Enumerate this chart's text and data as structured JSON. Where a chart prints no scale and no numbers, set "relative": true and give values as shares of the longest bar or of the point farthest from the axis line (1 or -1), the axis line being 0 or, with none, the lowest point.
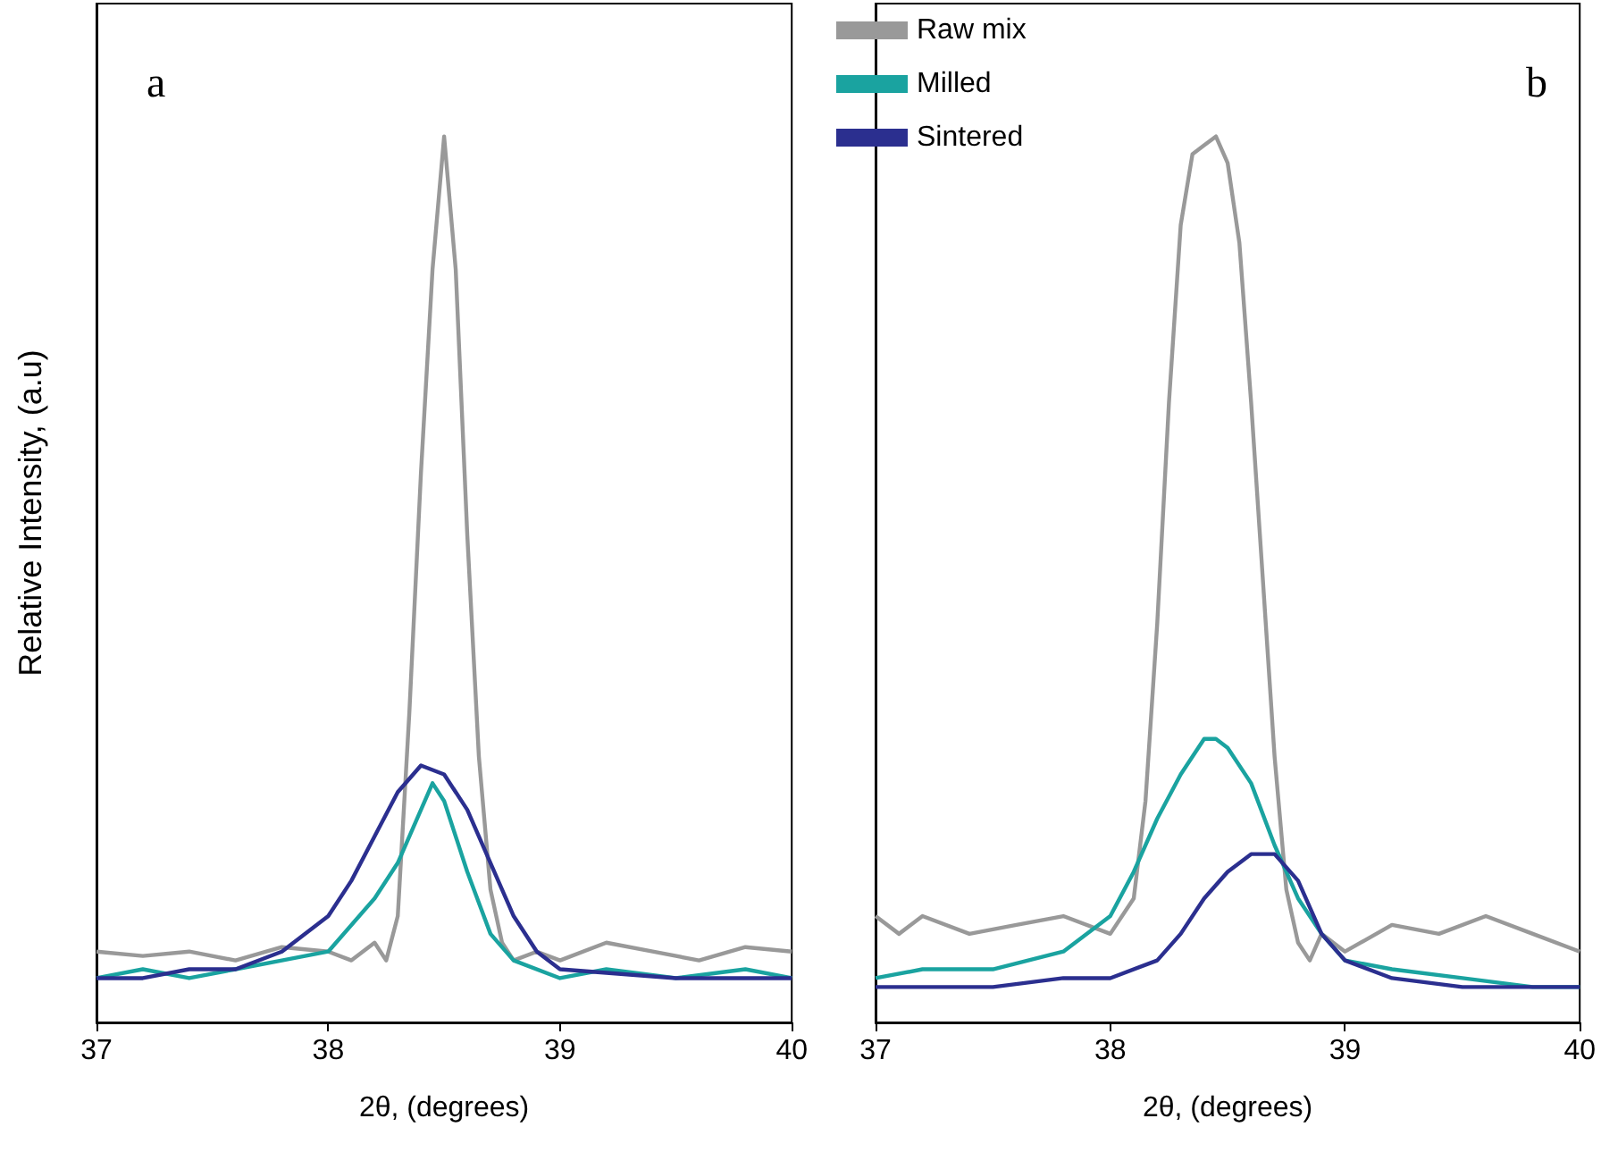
{
  "chart_data": [
    {
      "type": "line",
      "relative": true,
      "xlabel": "2θ, (degrees)",
      "ylabel": "Relative Intensity, (a.u)",
      "annotations": [
        "a"
      ],
      "xlim": [
        37,
        40
      ],
      "xticks": [
        37,
        38,
        39,
        40
      ],
      "grid": false,
      "legend": false,
      "series": [
        {
          "color": "#999999",
          "x": [
            37.0,
            37.2,
            37.4,
            37.6,
            37.8,
            38.0,
            38.1,
            38.2,
            38.25,
            38.3,
            38.35,
            38.4,
            38.45,
            38.5,
            38.55,
            38.6,
            38.65,
            38.7,
            38.75,
            38.8,
            38.9,
            39.0,
            39.2,
            39.4,
            39.6,
            39.8,
            40.0
          ],
          "values": [
            0.08,
            0.075,
            0.08,
            0.07,
            0.085,
            0.08,
            0.07,
            0.09,
            0.07,
            0.12,
            0.35,
            0.62,
            0.85,
            1.0,
            0.85,
            0.55,
            0.3,
            0.15,
            0.09,
            0.07,
            0.08,
            0.07,
            0.09,
            0.08,
            0.07,
            0.085,
            0.08
          ]
        },
        {
          "color": "#1aa3a0",
          "x": [
            37.0,
            37.2,
            37.4,
            37.6,
            37.8,
            38.0,
            38.2,
            38.3,
            38.4,
            38.45,
            38.5,
            38.6,
            38.7,
            38.8,
            39.0,
            39.2,
            39.5,
            39.8,
            40.0
          ],
          "values": [
            0.05,
            0.06,
            0.05,
            0.06,
            0.07,
            0.08,
            0.14,
            0.18,
            0.24,
            0.27,
            0.25,
            0.17,
            0.1,
            0.07,
            0.05,
            0.06,
            0.05,
            0.06,
            0.05
          ]
        },
        {
          "color": "#2b2f8f",
          "x": [
            37.0,
            37.2,
            37.4,
            37.6,
            37.8,
            38.0,
            38.1,
            38.2,
            38.3,
            38.4,
            38.5,
            38.6,
            38.7,
            38.8,
            38.9,
            39.0,
            39.5,
            40.0
          ],
          "values": [
            0.05,
            0.05,
            0.06,
            0.06,
            0.08,
            0.12,
            0.16,
            0.21,
            0.26,
            0.29,
            0.28,
            0.24,
            0.18,
            0.12,
            0.08,
            0.06,
            0.05,
            0.05
          ]
        }
      ]
    },
    {
      "type": "line",
      "relative": true,
      "xlabel": "2θ, (degrees)",
      "annotations": [
        "b"
      ],
      "xlim": [
        37,
        40
      ],
      "xticks": [
        37,
        38,
        39,
        40
      ],
      "grid": false,
      "legend": "top left",
      "series": [
        {
          "name": "Raw mix",
          "color": "#999999",
          "x": [
            37.0,
            37.1,
            37.2,
            37.4,
            37.6,
            37.8,
            38.0,
            38.1,
            38.15,
            38.2,
            38.25,
            38.3,
            38.35,
            38.4,
            38.45,
            38.5,
            38.55,
            38.6,
            38.65,
            38.7,
            38.75,
            38.8,
            38.85,
            38.9,
            39.0,
            39.2,
            39.4,
            39.6,
            39.8,
            40.0
          ],
          "values": [
            0.12,
            0.1,
            0.12,
            0.1,
            0.11,
            0.12,
            0.1,
            0.14,
            0.25,
            0.45,
            0.7,
            0.9,
            0.98,
            0.99,
            1.0,
            0.97,
            0.88,
            0.7,
            0.5,
            0.3,
            0.15,
            0.09,
            0.07,
            0.1,
            0.08,
            0.11,
            0.1,
            0.12,
            0.1,
            0.08
          ]
        },
        {
          "name": "Milled",
          "color": "#1aa3a0",
          "x": [
            37.0,
            37.2,
            37.5,
            37.8,
            38.0,
            38.1,
            38.2,
            38.3,
            38.4,
            38.45,
            38.5,
            38.6,
            38.7,
            38.8,
            38.9,
            39.0,
            39.2,
            39.5,
            39.8,
            40.0
          ],
          "values": [
            0.05,
            0.06,
            0.06,
            0.08,
            0.12,
            0.17,
            0.23,
            0.28,
            0.32,
            0.32,
            0.31,
            0.27,
            0.2,
            0.14,
            0.1,
            0.07,
            0.06,
            0.05,
            0.04,
            0.04
          ]
        },
        {
          "name": "Sintered",
          "color": "#2b2f8f",
          "x": [
            37.0,
            37.5,
            37.8,
            38.0,
            38.2,
            38.3,
            38.4,
            38.5,
            38.6,
            38.7,
            38.8,
            38.9,
            39.0,
            39.2,
            39.5,
            40.0
          ],
          "values": [
            0.04,
            0.04,
            0.05,
            0.05,
            0.07,
            0.1,
            0.14,
            0.17,
            0.19,
            0.19,
            0.16,
            0.1,
            0.07,
            0.05,
            0.04,
            0.04
          ]
        }
      ]
    }
  ]
}
